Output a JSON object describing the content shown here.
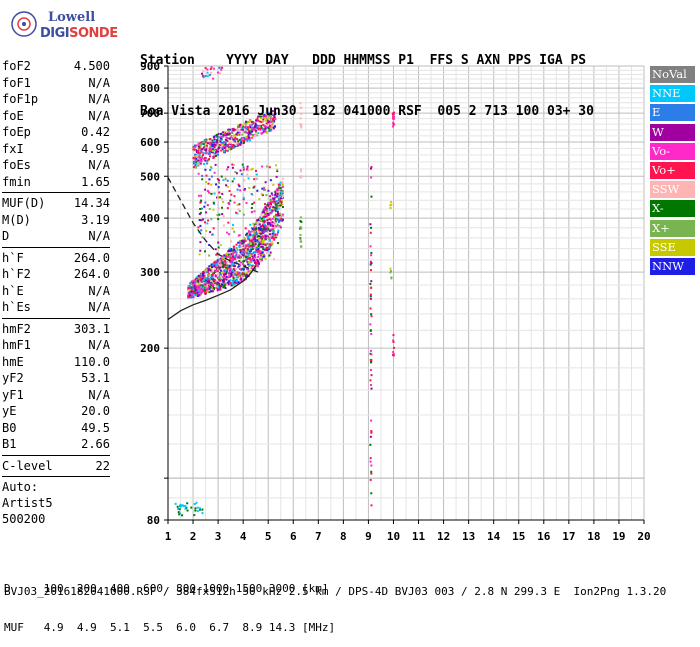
{
  "logo": {
    "line1": "Lowell",
    "line2": "DIGISONDE"
  },
  "header": {
    "line1": "Station    YYYY DAY   DDD HHMMSS P1  FFS S AXN PPS IGA PS",
    "line2": "Boa Vista 2016 Jun30  182 041000 RSF  005 2 713 100 03+ 30"
  },
  "params": {
    "group1": [
      {
        "label": "foF2",
        "value": "4.500"
      },
      {
        "label": "foF1",
        "value": "N/A"
      },
      {
        "label": "foF1p",
        "value": "N/A"
      },
      {
        "label": "foE",
        "value": "N/A"
      },
      {
        "label": "foEp",
        "value": "0.42"
      },
      {
        "label": "fxI",
        "value": "4.95"
      },
      {
        "label": "foEs",
        "value": "N/A"
      },
      {
        "label": "fmin",
        "value": "1.65"
      }
    ],
    "group2": [
      {
        "label": "MUF(D)",
        "value": "14.34"
      },
      {
        "label": "M(D)",
        "value": "3.19"
      },
      {
        "label": "D",
        "value": "N/A"
      }
    ],
    "group3": [
      {
        "label": "h`F",
        "value": "264.0"
      },
      {
        "label": "h`F2",
        "value": "264.0"
      },
      {
        "label": "h`E",
        "value": "N/A"
      },
      {
        "label": "h`Es",
        "value": "N/A"
      }
    ],
    "group4": [
      {
        "label": "hmF2",
        "value": "303.1"
      },
      {
        "label": "hmF1",
        "value": "N/A"
      },
      {
        "label": "hmE",
        "value": "110.0"
      },
      {
        "label": "yF2",
        "value": "53.1"
      },
      {
        "label": "yF1",
        "value": "N/A"
      },
      {
        "label": "yE",
        "value": "20.0"
      },
      {
        "label": "B0",
        "value": "49.5"
      },
      {
        "label": "B1",
        "value": "2.66"
      }
    ],
    "group5": [
      {
        "label": "C-level",
        "value": "22"
      }
    ],
    "auto_label": "Auto:",
    "artist": "Artist5",
    "code": "500200"
  },
  "legend": [
    {
      "label": "NoVal",
      "color": "#808080"
    },
    {
      "label": "NNE",
      "color": "#00c8ff"
    },
    {
      "label": "E",
      "color": "#2d7de8"
    },
    {
      "label": "W",
      "color": "#a000a0"
    },
    {
      "label": "Vo-",
      "color": "#ff28c8"
    },
    {
      "label": "Vo+",
      "color": "#ff1450"
    },
    {
      "label": "SSW",
      "color": "#ffb4b4"
    },
    {
      "label": "X-",
      "color": "#007800"
    },
    {
      "label": "X+",
      "color": "#78b450"
    },
    {
      "label": "SSE",
      "color": "#c8c800"
    },
    {
      "label": "NNW",
      "color": "#1e1ee6"
    }
  ],
  "footer": {
    "line1": "D     100  200  400  600  800 1000 1500 3000 [km]",
    "line2": "MUF   4.9  4.9  5.1  5.5  6.0  6.7  8.9 14.3 [MHz]",
    "line3": "BVJ03_2016182041000.RSF / 384fx512h 50 kHz 2.5 km / DPS-4D BVJ03 003 / 2.8 N 299.3 E  Ion2Png 1.3.20"
  },
  "chart_data": {
    "type": "scatter",
    "title": "",
    "xlabel": "",
    "ylabel": "",
    "xlim": [
      1,
      20
    ],
    "ylim": [
      80,
      900
    ],
    "y_scale": "log",
    "x_ticks": [
      1,
      2,
      3,
      4,
      5,
      6,
      7,
      8,
      9,
      10,
      11,
      12,
      13,
      14,
      15,
      16,
      17,
      18,
      19,
      20
    ],
    "y_ticks": [
      80,
      100,
      200,
      300,
      400,
      500,
      600,
      700,
      800,
      900
    ],
    "y_tick_labels": [
      "80",
      "",
      "200",
      "300",
      "400",
      "500",
      "600",
      "700",
      "800",
      "900"
    ],
    "grid": true,
    "point_clusters": [
      {
        "name": "F2 o-trace",
        "x_range": [
          1.8,
          5.6
        ],
        "y_center": [
          265,
          360
        ],
        "density": "high"
      },
      {
        "name": "F2 second-hop",
        "x_range": [
          2.0,
          5.3
        ],
        "y_center": [
          540,
          780
        ],
        "density": "medium"
      },
      {
        "name": "Es low traces",
        "x_range": [
          1.3,
          2.4
        ],
        "y_center": [
          82,
          90
        ],
        "density": "low"
      },
      {
        "name": "interference 6.2 MHz",
        "x": 6.3,
        "y_range": [
          340,
          740
        ]
      },
      {
        "name": "interference 9.1 MHz",
        "x": 9.1,
        "y_range": [
          82,
          540
        ]
      },
      {
        "name": "interference 10 MHz",
        "x": 10.0,
        "y_range": [
          185,
          720
        ]
      }
    ],
    "profile_curve": {
      "x": [
        1.0,
        1.5,
        2.0,
        2.5,
        3.0,
        3.5,
        4.0,
        4.3,
        4.5
      ],
      "y": [
        233,
        244,
        252,
        258,
        265,
        273,
        286,
        298,
        310
      ]
    },
    "dashed_curve": {
      "x": [
        1.0,
        1.5,
        2.0,
        2.5,
        3.0,
        3.5,
        4.0,
        4.4,
        4.6
      ],
      "y": [
        497,
        440,
        390,
        355,
        330,
        318,
        310,
        303,
        300
      ]
    }
  }
}
